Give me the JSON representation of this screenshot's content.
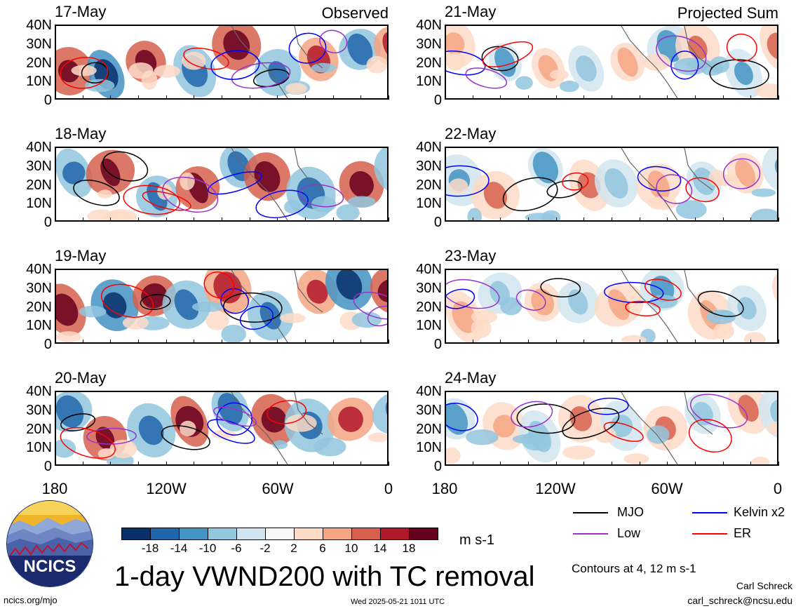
{
  "panels": [
    {
      "date": "17-May",
      "tag": "Observed"
    },
    {
      "date": "21-May",
      "tag": "Projected Sum"
    },
    {
      "date": "18-May",
      "tag": ""
    },
    {
      "date": "22-May",
      "tag": ""
    },
    {
      "date": "19-May",
      "tag": ""
    },
    {
      "date": "23-May",
      "tag": ""
    },
    {
      "date": "20-May",
      "tag": ""
    },
    {
      "date": "24-May",
      "tag": ""
    }
  ],
  "lat_labels": [
    "40N",
    "30N",
    "20N",
    "10N",
    "0"
  ],
  "lon_labels": [
    "180",
    "120W",
    "60W",
    "0"
  ],
  "colorbar": {
    "labels": [
      "-18",
      "-14",
      "-10",
      "-6",
      "-2",
      "2",
      "6",
      "10",
      "14",
      "18"
    ],
    "units": "m s-1",
    "colors": [
      "#08306b",
      "#2166ac",
      "#4393c3",
      "#92c5de",
      "#d1e5f0",
      "#f7f7f7",
      "#fddbc7",
      "#f4a582",
      "#d6604d",
      "#b2182b",
      "#67001f"
    ]
  },
  "legend": [
    {
      "label": "MJO",
      "color": "#000000"
    },
    {
      "label": "Kelvin x2",
      "color": "#0000ff"
    },
    {
      "label": "Low",
      "color": "#9932cc"
    },
    {
      "label": "ER",
      "color": "#ff0000"
    }
  ],
  "title": "1-day VWND200 with TC removal",
  "contours_note": "Contours at 4, 12 m s-1",
  "logo_text": "NCICS",
  "url": "ncics.org/mjo",
  "timestamp": "Wed 2025-05-21 1011 UTC",
  "author": "Carl Schreck",
  "email": "carl_schreck@ncsu.edu"
}
